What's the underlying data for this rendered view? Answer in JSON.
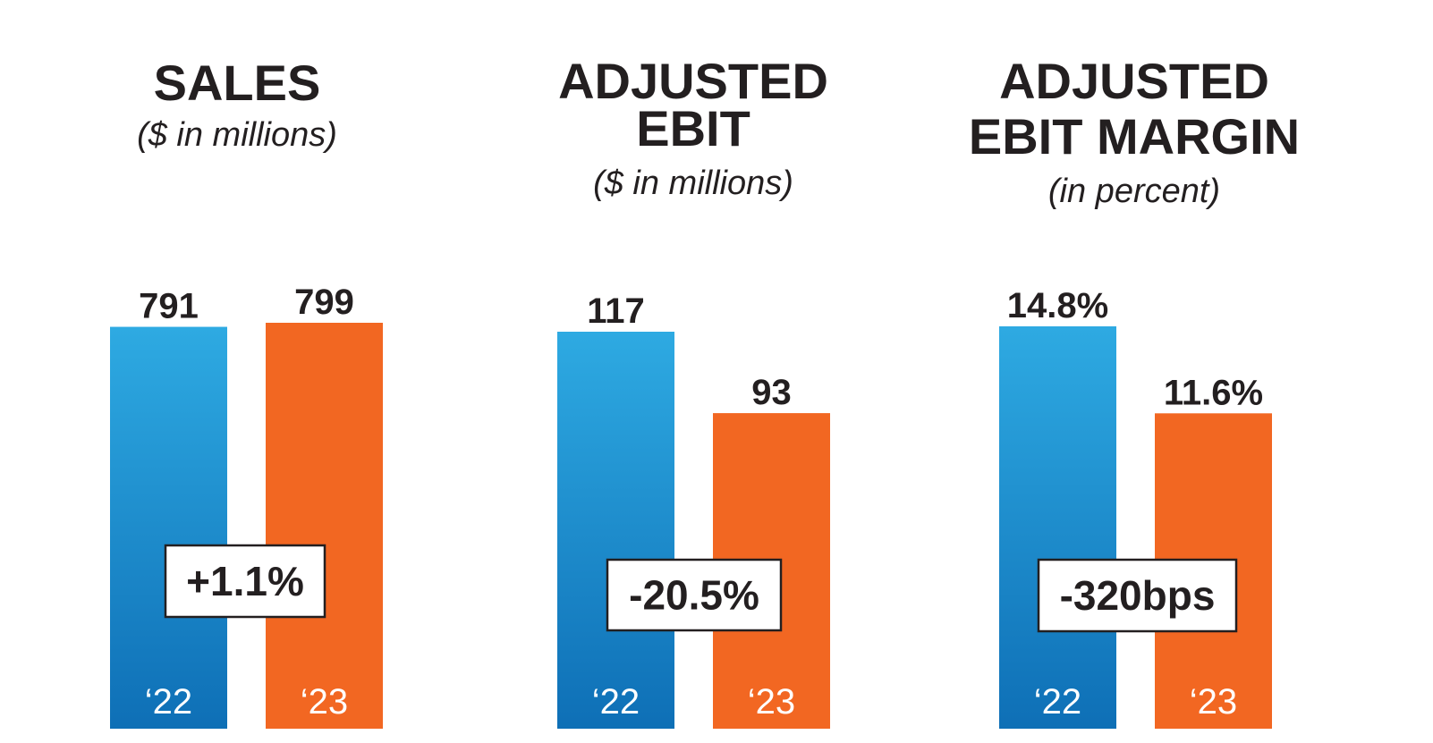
{
  "colors": {
    "series_2022_top": "#2eaae2",
    "series_2022_bottom": "#0e6fb6",
    "series_2023": "#f26722",
    "text": "#231f20"
  },
  "chart_data": [
    {
      "type": "bar",
      "title": [
        "SALES"
      ],
      "subtitle": "($ in millions)",
      "categories": [
        "‘22",
        "‘23"
      ],
      "values": [
        791,
        799
      ],
      "labels": [
        "791",
        "799"
      ],
      "change": "+1.1%",
      "ylim": [
        0,
        799
      ]
    },
    {
      "type": "bar",
      "title": [
        "ADJUSTED",
        "EBIT"
      ],
      "subtitle": "($ in millions)",
      "categories": [
        "‘22",
        "‘23"
      ],
      "values": [
        117,
        93
      ],
      "labels": [
        "117",
        "93"
      ],
      "change": "-20.5%",
      "ylim": [
        0,
        117
      ]
    },
    {
      "type": "bar",
      "title": [
        "ADJUSTED",
        "EBIT MARGIN"
      ],
      "subtitle": "(in percent)",
      "categories": [
        "‘22",
        "‘23"
      ],
      "values": [
        14.8,
        11.6
      ],
      "labels": [
        "14.8%",
        "11.6%"
      ],
      "change": "-320bps",
      "ylim": [
        0,
        14.8
      ]
    }
  ]
}
